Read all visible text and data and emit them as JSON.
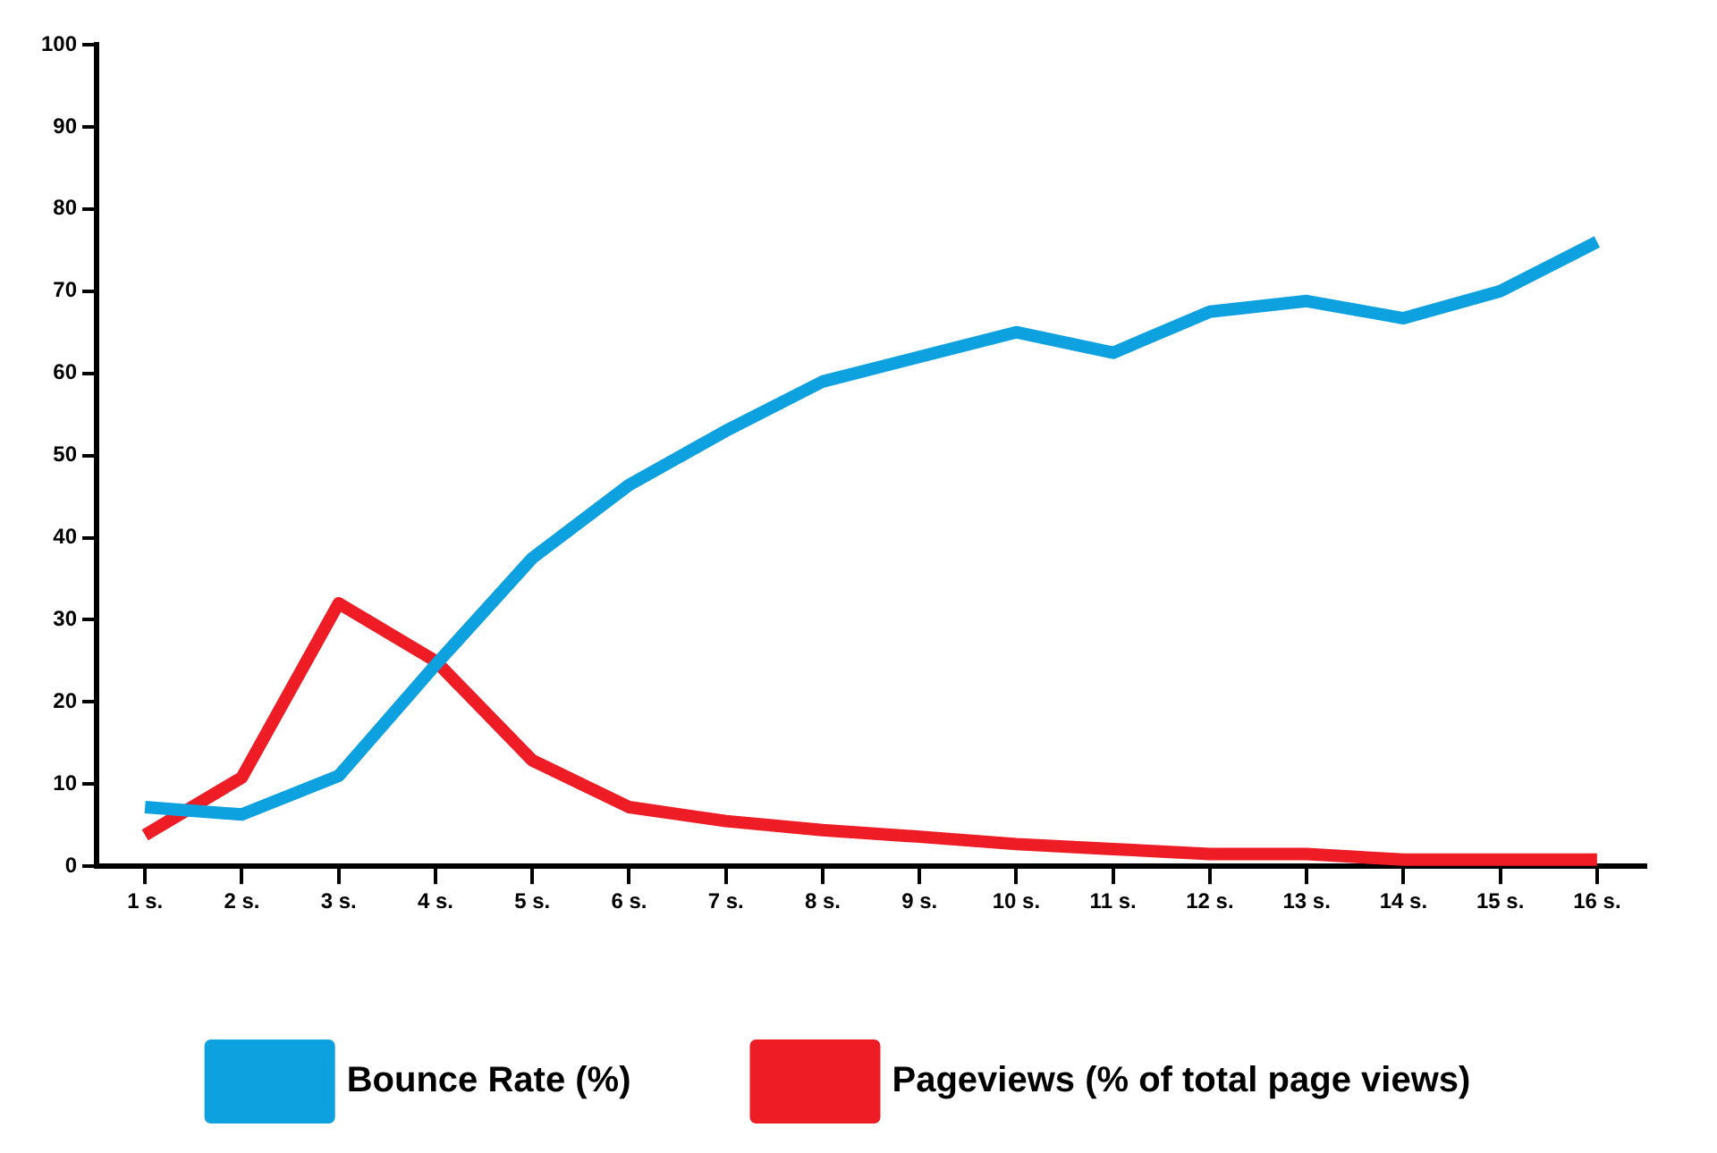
{
  "chart_data": {
    "type": "line",
    "categories": [
      "1 s.",
      "2 s.",
      "3 s.",
      "4 s.",
      "5 s.",
      "6 s.",
      "7 s.",
      "8 s.",
      "9 s.",
      "10 s.",
      "11 s.",
      "12 s.",
      "13 s.",
      "14 s.",
      "15 s.",
      "16 s."
    ],
    "series": [
      {
        "name": "Bounce Rate (%)",
        "color": "#0ea1e0",
        "values": [
          7.2,
          6.3,
          11,
          24.5,
          37.5,
          46.4,
          53,
          59,
          62,
          65,
          62.5,
          67.5,
          68.8,
          66.7,
          70,
          76
        ]
      },
      {
        "name": "Pageviews (% of total page views)",
        "color": "#ee1c25",
        "values": [
          3.8,
          10.8,
          32,
          25,
          12.9,
          7.2,
          5.5,
          4.4,
          3.6,
          2.7,
          2.1,
          1.5,
          1.5,
          0.8,
          0.8,
          0.8
        ]
      }
    ],
    "ylim": [
      0,
      100
    ],
    "yticks": [
      0,
      10,
      20,
      30,
      40,
      50,
      60,
      70,
      80,
      90,
      100
    ],
    "grid": false,
    "legend": "bottom",
    "marker": "none",
    "line_style": "solid"
  }
}
